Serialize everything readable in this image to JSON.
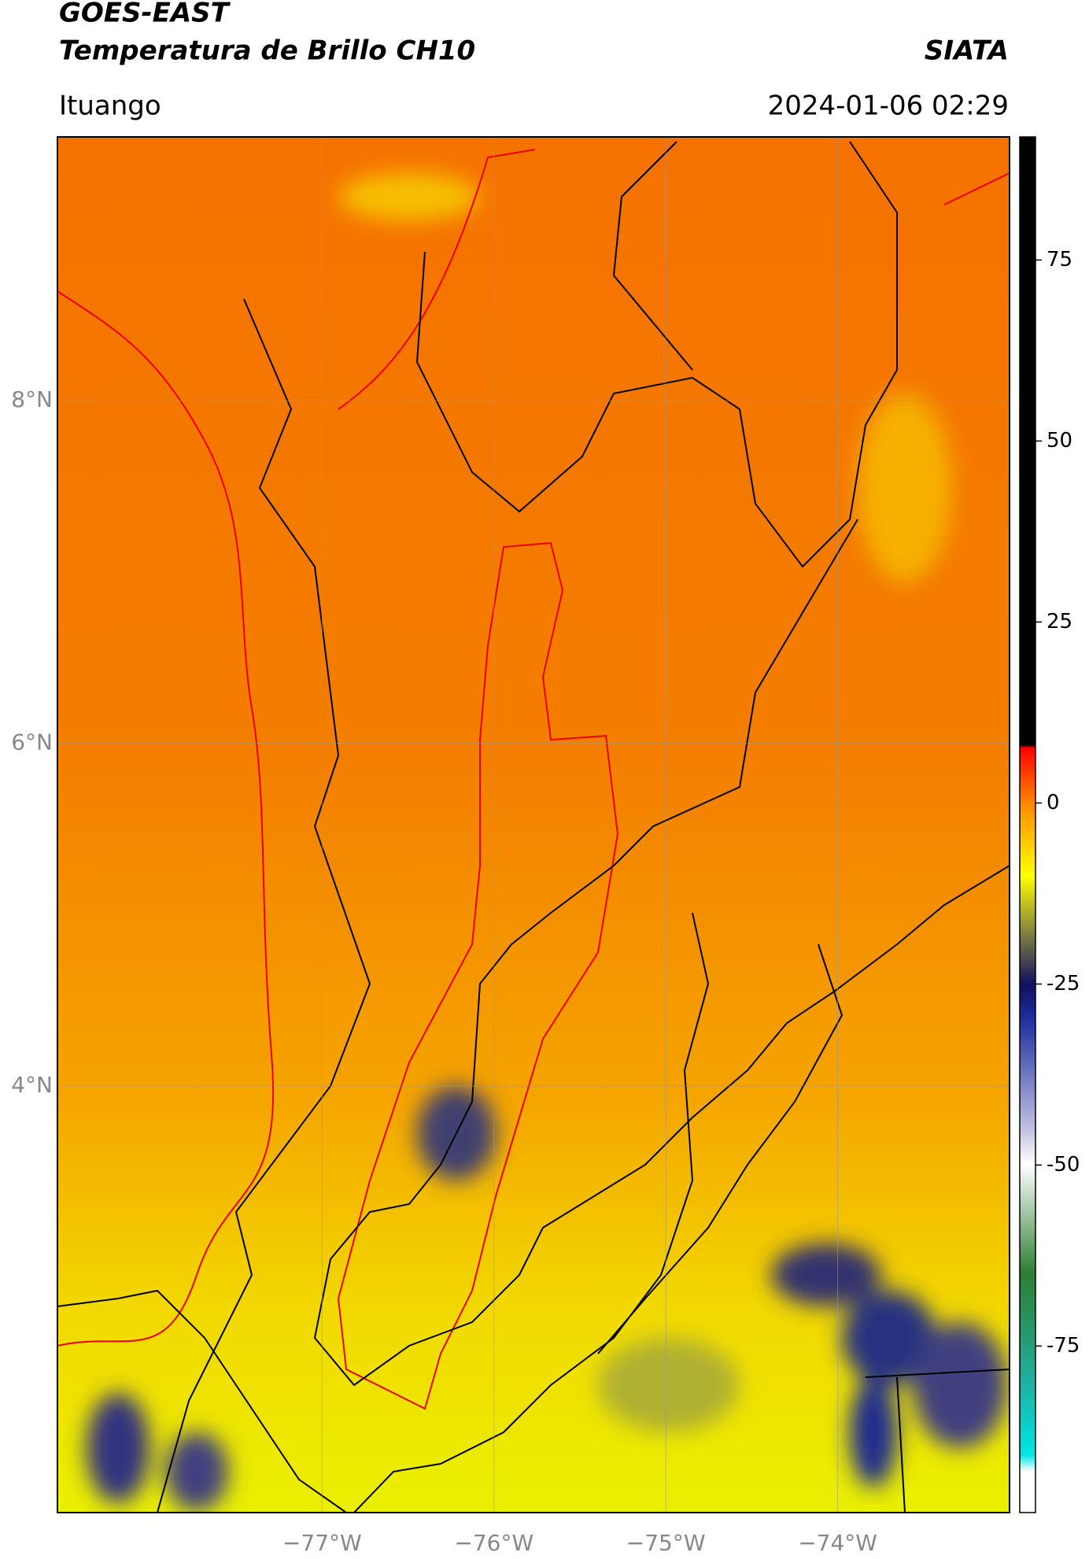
{
  "header": {
    "title": "GOES-EAST",
    "subtitle": "Temperatura de Brillo CH10",
    "source": "SIATA",
    "location": "Ituango",
    "timestamp": "2024-01-06 02:29"
  },
  "map": {
    "xlim": [
      -78.54,
      -73.0
    ],
    "ylim": [
      1.51,
      9.54
    ],
    "grid": true,
    "xticks": [
      {
        "value": -77,
        "label": "−77°W"
      },
      {
        "value": -76,
        "label": "−76°W"
      },
      {
        "value": -75,
        "label": "−75°W"
      },
      {
        "value": -74,
        "label": "−74°W"
      }
    ],
    "yticks": [
      {
        "value": 4,
        "label": "4°N"
      },
      {
        "value": 6,
        "label": "6°N"
      },
      {
        "value": 8,
        "label": "8°N"
      }
    ]
  },
  "colorbar": {
    "lim": [
      -98,
      92
    ],
    "ticks": [
      -75,
      -50,
      -25,
      0,
      25,
      50,
      75
    ]
  }
}
